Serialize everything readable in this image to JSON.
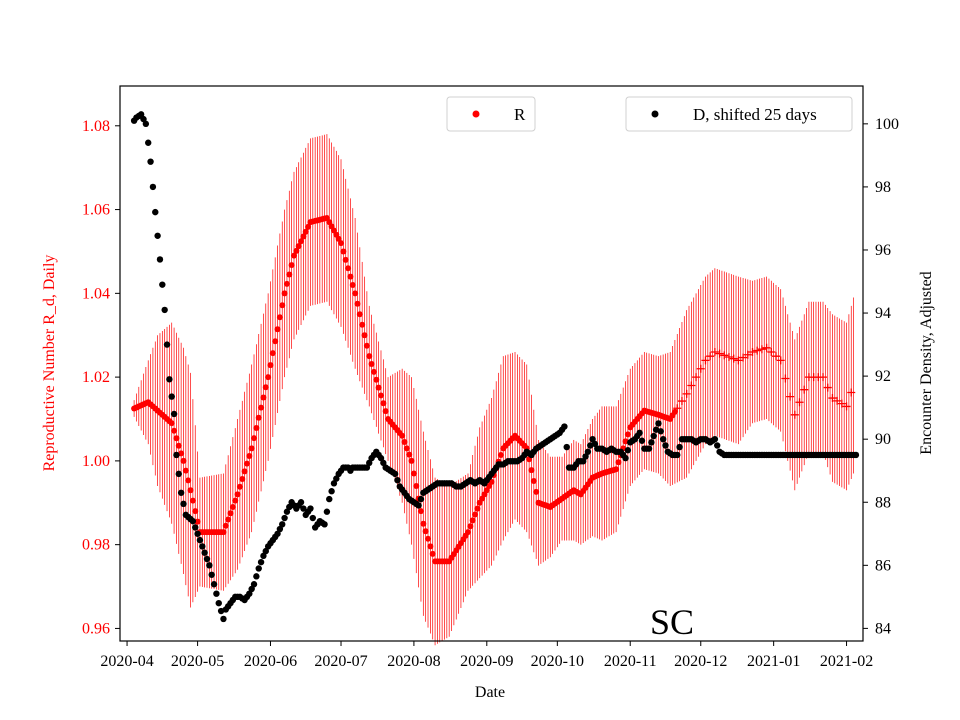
{
  "chart_data": {
    "type": "scatter",
    "annotation": "SC",
    "xlabel": "Date",
    "ylabel_left": "Reproductive Number R_d, Daily",
    "ylabel_right": "Encounter Density, Adjusted",
    "x_ticks": [
      "2020-04",
      "2020-05",
      "2020-06",
      "2020-07",
      "2020-08",
      "2020-09",
      "2020-10",
      "2020-11",
      "2020-12",
      "2021-01",
      "2021-02"
    ],
    "x_range_days": [
      -3,
      313
    ],
    "ylim_left": [
      0.957,
      1.0895
    ],
    "yticks_left": [
      "0.96",
      "0.98",
      "1.00",
      "1.02",
      "1.04",
      "1.06",
      "1.08"
    ],
    "ylim_right": [
      83.6,
      101.2
    ],
    "yticks_right": [
      "84",
      "86",
      "88",
      "90",
      "92",
      "94",
      "96",
      "98",
      "100"
    ],
    "colors": {
      "R": "#ff0000",
      "D": "#000000"
    },
    "legend": {
      "R": "R",
      "D": "D, shifted 25 days"
    },
    "series_R": {
      "name": "R",
      "axis": "left",
      "marker": "dot then plus (last ~2 months)",
      "plus_from_day": 234,
      "x_days": [
        3,
        9,
        13,
        19,
        24,
        27,
        31,
        41,
        47,
        53,
        60,
        67,
        71,
        78,
        85,
        91,
        97,
        103,
        111,
        117,
        121,
        126,
        131,
        137,
        145,
        150,
        155,
        160,
        165,
        170,
        175,
        180,
        185,
        190,
        193,
        198,
        202,
        208,
        214,
        220,
        226,
        231,
        238,
        242,
        246,
        250,
        255,
        260,
        266,
        272,
        278,
        284,
        290,
        296,
        300,
        306,
        309
      ],
      "values": [
        1.0125,
        1.014,
        1.012,
        1.009,
        1.0,
        0.993,
        0.983,
        0.983,
        0.992,
        1.003,
        1.02,
        1.04,
        1.049,
        1.057,
        1.058,
        1.052,
        1.04,
        1.025,
        1.01,
        1.006,
        1.0,
        0.985,
        0.976,
        0.976,
        0.983,
        0.99,
        0.995,
        1.003,
        1.006,
        1.003,
        0.99,
        0.989,
        0.991,
        0.993,
        0.992,
        0.996,
        0.997,
        0.998,
        1.008,
        1.012,
        1.011,
        1.01,
        1.016,
        1.02,
        1.024,
        1.026,
        1.025,
        1.024,
        1.026,
        1.027,
        1.024,
        1.011,
        1.02,
        1.02,
        1.015,
        1.013,
        1.018
      ],
      "err_half": [
        0.002,
        0.01,
        0.018,
        0.024,
        0.027,
        0.028,
        0.013,
        0.014,
        0.018,
        0.02,
        0.02,
        0.02,
        0.02,
        0.02,
        0.02,
        0.02,
        0.018,
        0.012,
        0.01,
        0.016,
        0.02,
        0.022,
        0.02,
        0.018,
        0.014,
        0.018,
        0.02,
        0.022,
        0.02,
        0.02,
        0.015,
        0.012,
        0.01,
        0.012,
        0.012,
        0.014,
        0.016,
        0.015,
        0.014,
        0.014,
        0.014,
        0.016,
        0.02,
        0.02,
        0.02,
        0.02,
        0.02,
        0.02,
        0.017,
        0.017,
        0.017,
        0.018,
        0.018,
        0.018,
        0.02,
        0.02,
        0.021
      ]
    },
    "series_D": {
      "name": "D, shifted 25 days",
      "axis": "right",
      "marker": "dot",
      "x_days": [
        3,
        4,
        6,
        8,
        10,
        12,
        14,
        16,
        17,
        18,
        20,
        21,
        23,
        25,
        28,
        30,
        32,
        35,
        37,
        39,
        41,
        42,
        44,
        46,
        48,
        50,
        52,
        54,
        56,
        58,
        60,
        62,
        64,
        66,
        68,
        70,
        72,
        74,
        76,
        78,
        80,
        82,
        84,
        86,
        88,
        90,
        92,
        94,
        95,
        96,
        98,
        100,
        102,
        104,
        106,
        108,
        110,
        112,
        114,
        116,
        118,
        120,
        122,
        124,
        126,
        128,
        130,
        132,
        134,
        136,
        138,
        140,
        142,
        144,
        146,
        148,
        150,
        152,
        154,
        156,
        158,
        160,
        162,
        164,
        166,
        168,
        170,
        172,
        174,
        176,
        178,
        180,
        182,
        184,
        186,
        188,
        190,
        192,
        194,
        196,
        198,
        200,
        202,
        204,
        206,
        208,
        210,
        212,
        214,
        216,
        218,
        220,
        222,
        224,
        226,
        228,
        230,
        232,
        234,
        236,
        238,
        240,
        242,
        244,
        246,
        248,
        250,
        252,
        254,
        256,
        258,
        260,
        262,
        264,
        266,
        268,
        270,
        272,
        274,
        276,
        278,
        280,
        282,
        284,
        286,
        288,
        290,
        292,
        294,
        296,
        298,
        300,
        302,
        304,
        306,
        308,
        310
      ],
      "values": [
        100.1,
        100.2,
        100.3,
        100.0,
        98.8,
        97.2,
        95.7,
        94.1,
        93.0,
        91.9,
        90.8,
        89.5,
        88.3,
        87.6,
        87.4,
        87.0,
        86.6,
        86.0,
        85.4,
        84.8,
        84.3,
        84.6,
        84.8,
        85.0,
        85.0,
        84.9,
        85.1,
        85.4,
        85.9,
        86.3,
        86.6,
        86.8,
        87.0,
        87.3,
        87.7,
        88.0,
        87.8,
        88.0,
        87.6,
        87.8,
        87.2,
        87.4,
        87.3,
        88.1,
        88.6,
        88.9,
        89.1,
        89.1,
        89.0,
        89.1,
        89.1,
        89.1,
        89.1,
        89.4,
        89.6,
        89.4,
        89.1,
        89.0,
        88.9,
        88.5,
        88.3,
        88.1,
        88.0,
        87.9,
        88.3,
        88.4,
        88.5,
        88.6,
        88.6,
        88.6,
        88.6,
        88.5,
        88.5,
        88.6,
        88.7,
        88.6,
        88.7,
        88.6,
        88.8,
        89.0,
        89.2,
        89.2,
        89.3,
        89.3,
        89.3,
        89.4,
        89.6,
        89.5,
        89.7,
        89.8,
        89.9,
        90.0,
        90.1,
        90.2,
        90.4,
        89.1,
        89.1,
        89.3,
        89.3,
        89.6,
        90.0,
        89.7,
        89.7,
        89.6,
        89.7,
        89.6,
        89.6,
        89.4,
        89.9,
        90.0,
        90.2,
        89.7,
        89.7,
        90.1,
        90.5,
        90.0,
        89.6,
        89.5,
        89.5,
        90.0,
        90.0,
        90.0,
        89.9,
        90.0,
        90.0,
        89.9,
        90.0,
        89.6,
        89.5,
        89.5,
        89.5,
        89.5,
        89.5,
        89.5,
        89.5,
        89.5,
        89.5,
        89.5,
        89.5,
        89.5,
        89.5,
        89.5,
        89.5,
        89.5,
        89.5,
        89.5,
        89.5,
        89.5,
        89.5,
        89.5,
        89.5,
        89.5,
        89.5,
        89.5,
        89.5,
        89.5,
        89.5
      ]
    }
  }
}
